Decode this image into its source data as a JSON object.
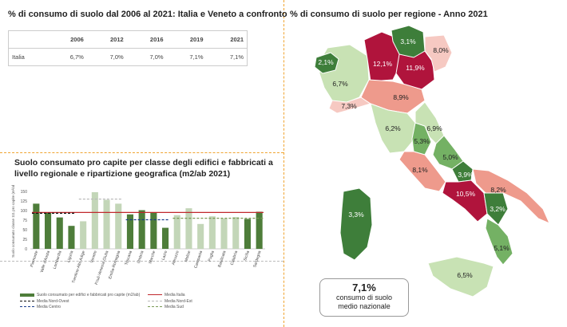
{
  "table_panel": {
    "title": "% di consumo di suolo dal 2006 al 2021: Italia e Veneto a confronto",
    "columns": [
      "",
      "2006",
      "2012",
      "2016",
      "2019",
      "2021"
    ],
    "rows": [
      {
        "label": "Italia",
        "values": [
          "6,7%",
          "7,0%",
          "7,0%",
          "7,1%",
          "7,1%"
        ]
      }
    ]
  },
  "map_panel": {
    "title": "% di consumo di suolo per regione - Anno 2021",
    "callout": {
      "value": "7,1%",
      "line1": "consumo di suolo",
      "line2": "medio nazionale"
    },
    "colors": {
      "dark_red": "#b0143c",
      "salmon": "#ee9a8c",
      "pink": "#f6c9c2",
      "dark_green": "#3e7e3a",
      "mid_green": "#74b164",
      "light_green": "#c8e2b4"
    },
    "regions": [
      {
        "name": "Valle d'Aosta",
        "label": "2,1%",
        "color": "#3e7e3a"
      },
      {
        "name": "Piemonte",
        "label": "6,7%",
        "color": "#c8e2b4"
      },
      {
        "name": "Lombardia",
        "label": "12,1%",
        "color": "#b0143c"
      },
      {
        "name": "Trentino-Alto Adige",
        "label": "3,1%",
        "color": "#3e7e3a"
      },
      {
        "name": "Veneto",
        "label": "11,9%",
        "color": "#b0143c"
      },
      {
        "name": "Friuli-Venezia Giulia",
        "label": "8,0%",
        "color": "#f6c9c2"
      },
      {
        "name": "Liguria",
        "label": "7,3%",
        "color": "#f6c9c2"
      },
      {
        "name": "Emilia-Romagna",
        "label": "8,9%",
        "color": "#ee9a8c"
      },
      {
        "name": "Toscana",
        "label": "6,2%",
        "color": "#c8e2b4"
      },
      {
        "name": "Umbria",
        "label": "5,3%",
        "color": "#74b164"
      },
      {
        "name": "Marche",
        "label": "6,9%",
        "color": "#c8e2b4"
      },
      {
        "name": "Lazio",
        "label": "8,1%",
        "color": "#ee9a8c"
      },
      {
        "name": "Abruzzo",
        "label": "5,0%",
        "color": "#74b164"
      },
      {
        "name": "Molise",
        "label": "3,9%",
        "color": "#3e7e3a"
      },
      {
        "name": "Campania",
        "label": "10,5%",
        "color": "#b0143c"
      },
      {
        "name": "Puglia",
        "label": "8,2%",
        "color": "#ee9a8c"
      },
      {
        "name": "Basilicata",
        "label": "3,2%",
        "color": "#3e7e3a"
      },
      {
        "name": "Calabria",
        "label": "5,1%",
        "color": "#74b164"
      },
      {
        "name": "Sicilia",
        "label": "6,5%",
        "color": "#c8e2b4"
      },
      {
        "name": "Sardegna",
        "label": "3,3%",
        "color": "#3e7e3a"
      }
    ]
  },
  "bar_panel": {
    "title": "Suolo consumato pro capite per classe degli edifici e fabbricati a livello regionale e ripartizione geografica (m2/ab 2021)",
    "ylabel": "Suolo consumato classe 111 pro capite (m²/ab)",
    "legend": [
      {
        "label": "Suolo consumato per edifici e fabbricati pro capite (m2/ab)",
        "color": "#4e7d3a",
        "style": "bar"
      },
      {
        "label": "Media Nord-Ovest",
        "color": "#111111",
        "style": "dash"
      },
      {
        "label": "Media Centro",
        "color": "#1a3c8c",
        "style": "dash"
      },
      {
        "label": "Media Italia",
        "color": "#c0282c",
        "style": "solid"
      },
      {
        "label": "Media Nord-Est",
        "color": "#bbbbbb",
        "style": "dash"
      },
      {
        "label": "Media Sud",
        "color": "#7a9a55",
        "style": "dash"
      }
    ]
  },
  "chart_data": {
    "type": "bar",
    "categories": [
      "Piemonte",
      "Valle d'Aosta",
      "Lombardia",
      "Liguria",
      "Trentino-Alto Adige",
      "Veneto",
      "Friuli-Venezia Giulia",
      "Emilia-Romagna",
      "Toscana",
      "Umbria",
      "Marche",
      "Lazio",
      "Abruzzo",
      "Molise",
      "Campania",
      "Puglia",
      "Basilicata",
      "Calabria",
      "Sicilia",
      "Sardegna"
    ],
    "values": [
      118,
      95,
      82,
      60,
      72,
      148,
      128,
      118,
      90,
      101,
      95,
      55,
      88,
      106,
      65,
      85,
      79,
      83,
      78,
      97
    ],
    "bar_colors": [
      "#4e7d3a",
      "#4e7d3a",
      "#4e7d3a",
      "#4e7d3a",
      "#c3d6b8",
      "#c3d6b8",
      "#c3d6b8",
      "#c3d6b8",
      "#4e7d3a",
      "#4e7d3a",
      "#4e7d3a",
      "#4e7d3a",
      "#c3d6b8",
      "#c3d6b8",
      "#c3d6b8",
      "#c3d6b8",
      "#c3d6b8",
      "#c3d6b8",
      "#4e7d3a",
      "#4e7d3a"
    ],
    "reference_lines": [
      {
        "name": "Media Italia",
        "value": 95,
        "from": 0,
        "to": 19,
        "color": "#c0282c",
        "style": "solid"
      },
      {
        "name": "Media Nord-Ovest",
        "value": 93,
        "from": 0,
        "to": 3,
        "color": "#111111",
        "style": "dash"
      },
      {
        "name": "Media Nord-Est",
        "value": 130,
        "from": 4,
        "to": 7,
        "color": "#bbbbbb",
        "style": "dash"
      },
      {
        "name": "Media Centro",
        "value": 76,
        "from": 8,
        "to": 11,
        "color": "#1a3c8c",
        "style": "dash"
      },
      {
        "name": "Media Sud",
        "value": 80,
        "from": 12,
        "to": 19,
        "color": "#7a9a55",
        "style": "dash"
      }
    ],
    "ylim": [
      0,
      150
    ],
    "yticks": [
      0,
      25,
      50,
      75,
      100,
      125,
      150
    ],
    "ylabel": "Suolo consumato classe 111 pro capite (m²/ab)",
    "xlabel": "",
    "grid": false
  }
}
